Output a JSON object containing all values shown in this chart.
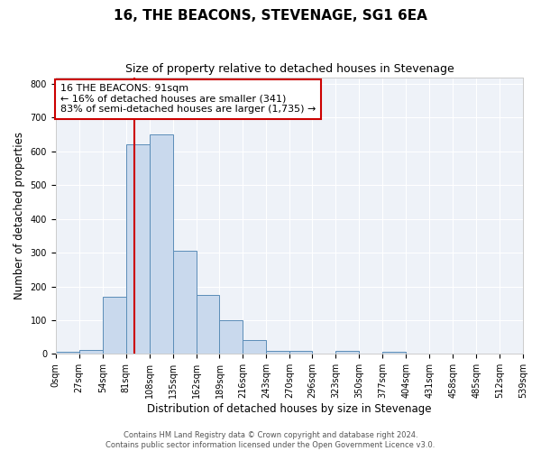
{
  "title": "16, THE BEACONS, STEVENAGE, SG1 6EA",
  "subtitle": "Size of property relative to detached houses in Stevenage",
  "xlabel": "Distribution of detached houses by size in Stevenage",
  "ylabel": "Number of detached properties",
  "bin_edges": [
    0,
    27,
    54,
    81,
    108,
    135,
    162,
    189,
    216,
    243,
    270,
    296,
    323,
    350,
    377,
    404,
    431,
    458,
    485,
    512,
    539
  ],
  "bar_heights": [
    5,
    12,
    170,
    620,
    650,
    305,
    175,
    100,
    40,
    10,
    10,
    0,
    8,
    0,
    5,
    0,
    0,
    0,
    0,
    0
  ],
  "bar_color": "#c9d9ed",
  "bar_edgecolor": "#5b8db8",
  "bar_linewidth": 0.7,
  "ylim": [
    0,
    820
  ],
  "yticks": [
    0,
    100,
    200,
    300,
    400,
    500,
    600,
    700,
    800
  ],
  "red_line_x": 91,
  "red_line_color": "#cc0000",
  "annotation_line1": "16 THE BEACONS: 91sqm",
  "annotation_line2": "← 16% of detached houses are smaller (341)",
  "annotation_line3": "83% of semi-detached houses are larger (1,735) →",
  "annotation_box_color": "#ffffff",
  "annotation_box_edgecolor": "#cc0000",
  "footer_line1": "Contains HM Land Registry data © Crown copyright and database right 2024.",
  "footer_line2": "Contains public sector information licensed under the Open Government Licence v3.0.",
  "figure_background_color": "#ffffff",
  "plot_background_color": "#eef2f8",
  "grid_color": "#ffffff",
  "title_fontsize": 11,
  "subtitle_fontsize": 9,
  "xlabel_fontsize": 8.5,
  "ylabel_fontsize": 8.5,
  "tick_fontsize": 7,
  "annotation_fontsize": 8,
  "footer_fontsize": 6
}
